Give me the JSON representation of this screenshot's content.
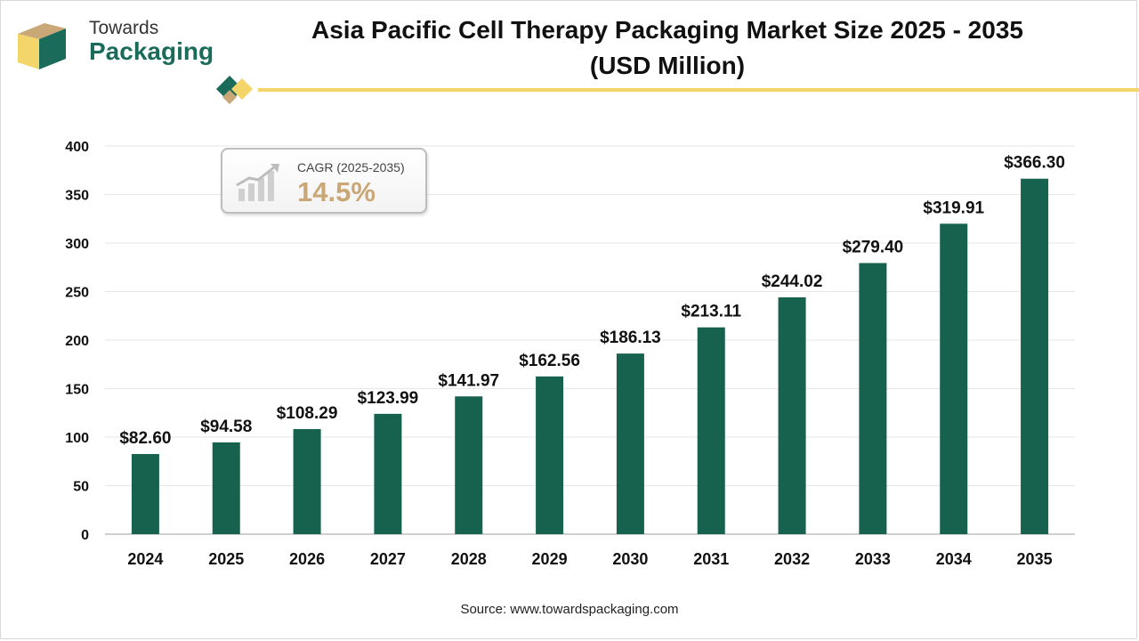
{
  "logo": {
    "line1": "Towards",
    "line2": "Packaging"
  },
  "title": {
    "line1": "Asia Pacific Cell Therapy Packaging Market Size 2025 - 2035",
    "line2": "(USD Million)"
  },
  "cagr": {
    "label": "CAGR (2025-2035)",
    "value": "14.5%"
  },
  "source": "Source: www.towardspackaging.com",
  "colors": {
    "bar": "#17614f",
    "accent": "#f4d56a",
    "cagr": "#c9a777"
  },
  "chart_data": {
    "type": "bar",
    "categories": [
      "2024",
      "2025",
      "2026",
      "2027",
      "2028",
      "2029",
      "2030",
      "2031",
      "2032",
      "2033",
      "2034",
      "2035"
    ],
    "values": [
      82.6,
      94.58,
      108.29,
      123.99,
      141.97,
      162.56,
      186.13,
      213.11,
      244.02,
      279.4,
      319.91,
      366.3
    ],
    "data_labels": [
      "$82.60",
      "$94.58",
      "$108.29",
      "$123.99",
      "$141.97",
      "$162.56",
      "$186.13",
      "$213.11",
      "$244.02",
      "$279.40",
      "$319.91",
      "$366.30"
    ],
    "yticks": [
      0,
      50,
      100,
      150,
      200,
      250,
      300,
      350,
      400
    ],
    "ylim": [
      0,
      400
    ],
    "title": "Asia Pacific Cell Therapy Packaging Market Size 2025 - 2035 (USD Million)",
    "xlabel": "",
    "ylabel": "",
    "grid": true,
    "legend": "none"
  }
}
